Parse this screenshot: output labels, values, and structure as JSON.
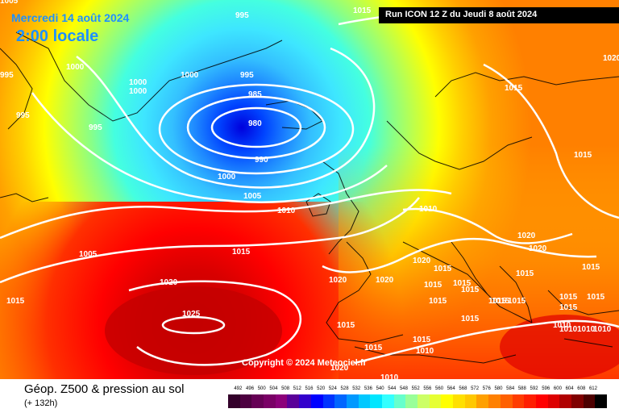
{
  "header": {
    "date": "Mercredi 14 août 2024",
    "local_time": "2:00 locale",
    "run": "Run ICON 12 Z du Jeudi 8 août 2024"
  },
  "footer": {
    "title": "Géop. Z500 & pression au sol",
    "lead": "(+ 132h)",
    "copyright": "Copyright © 2024 Meteociel.fr"
  },
  "isobar_labels": [
    "995",
    "995",
    "1005",
    "1000",
    "995",
    "1000",
    "1000",
    "995",
    "1000",
    "985",
    "980",
    "990",
    "995",
    "1000",
    "1005",
    "1010",
    "1015",
    "1005",
    "1015",
    "1020",
    "1025",
    "1015",
    "1015",
    "1010",
    "1015",
    "1020",
    "1020",
    "1015",
    "1015",
    "1020",
    "1020",
    "1015",
    "1015",
    "1015",
    "1015",
    "1015",
    "1020",
    "1015",
    "1015",
    "1015",
    "1015",
    "1015",
    "1010",
    "1010",
    "1015",
    "1010",
    "1010",
    "1015",
    "1020",
    "1015",
    "1010",
    "1015",
    "1010",
    "1020",
    "1015"
  ],
  "scale_ticks": [
    "492",
    "496",
    "500",
    "504",
    "508",
    "512",
    "516",
    "520",
    "524",
    "528",
    "532",
    "536",
    "540",
    "544",
    "548",
    "552",
    "556",
    "560",
    "564",
    "568",
    "572",
    "576",
    "580",
    "584",
    "588",
    "592",
    "596",
    "600",
    "604",
    "608",
    "612"
  ],
  "scale_colors": [
    "#33002a",
    "#4d0040",
    "#660055",
    "#7a0066",
    "#8c007a",
    "#5a0099",
    "#3300cc",
    "#0000ff",
    "#0033ff",
    "#0066ff",
    "#0099ff",
    "#00c8ff",
    "#00e6ff",
    "#33ffff",
    "#66ffcc",
    "#99ff99",
    "#ccff66",
    "#e6ff33",
    "#ffff00",
    "#ffe000",
    "#ffc800",
    "#ffa000",
    "#ff8000",
    "#ff6000",
    "#ff3c00",
    "#ff1e00",
    "#ff0000",
    "#dd0000",
    "#b00000",
    "#800000",
    "#4d0000",
    "#000000"
  ]
}
